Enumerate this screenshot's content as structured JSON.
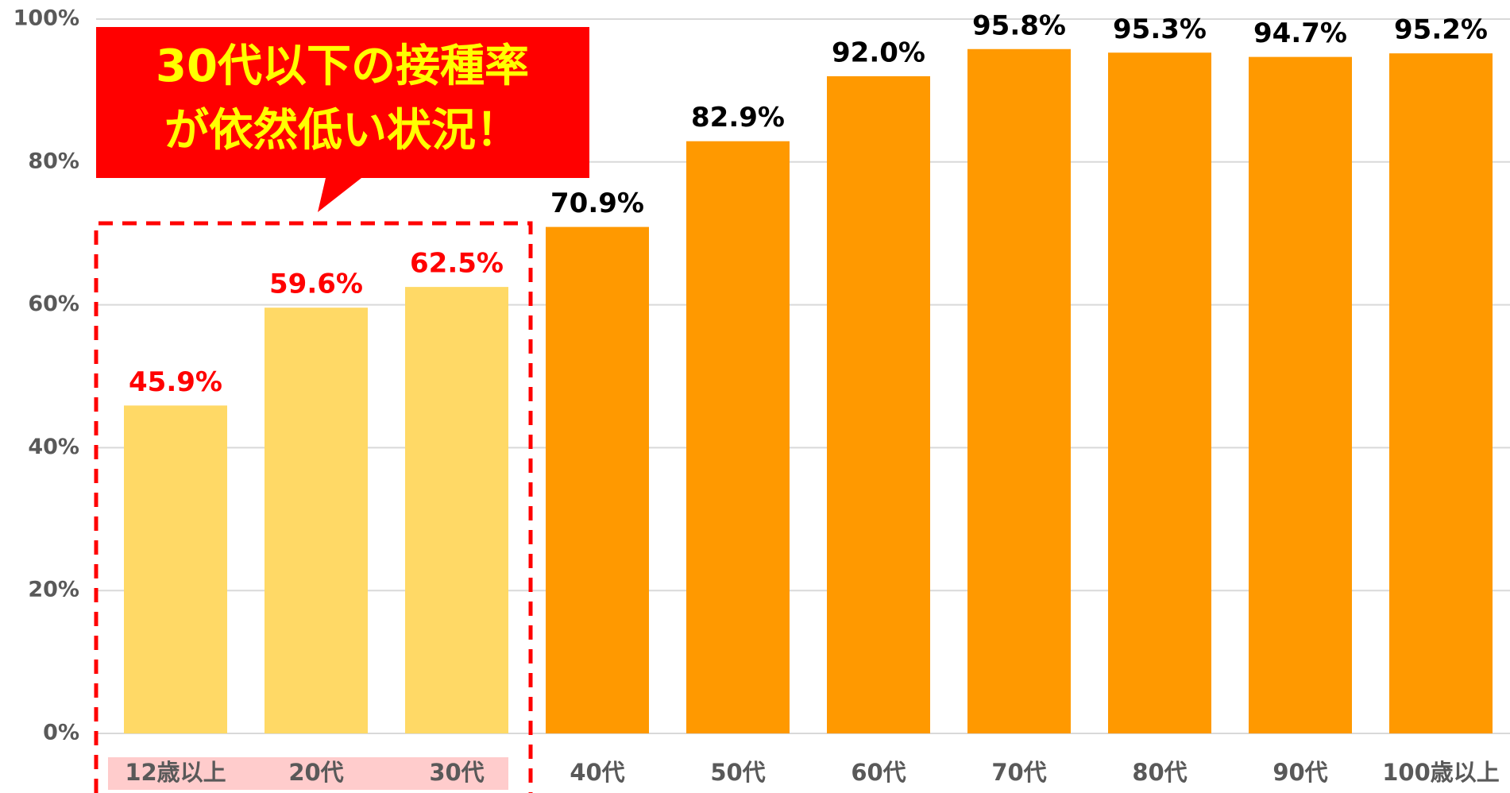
{
  "chart_data": {
    "type": "bar",
    "annotation": [
      "30代以下の接種率",
      "が依然低い状況！"
    ],
    "categories": [
      "12歳以上",
      "20代",
      "30代",
      "40代",
      "50代",
      "60代",
      "70代",
      "80代",
      "90代",
      "100歳以上"
    ],
    "values": [
      45.9,
      59.6,
      62.5,
      70.9,
      82.9,
      92.0,
      95.8,
      95.3,
      94.7,
      95.2
    ],
    "value_labels": [
      "45.9%",
      "59.6%",
      "62.5%",
      "70.9%",
      "82.9%",
      "92.0%",
      "95.8%",
      "95.3%",
      "94.7%",
      "95.2%"
    ],
    "colors": [
      "#FFD966",
      "#FFD966",
      "#FFD966",
      "#FF9900",
      "#FF9900",
      "#FF9900",
      "#FF9900",
      "#FF9900",
      "#FF9900",
      "#FF9900"
    ],
    "label_colors": [
      "#FF0000",
      "#FF0000",
      "#FF0000",
      "#000000",
      "#000000",
      "#000000",
      "#000000",
      "#000000",
      "#000000",
      "#000000"
    ],
    "ylim": [
      0,
      100
    ],
    "yticks": [
      {
        "value": 0,
        "label": "0%"
      },
      {
        "value": 20,
        "label": "20%"
      },
      {
        "value": 40,
        "label": "40%"
      },
      {
        "value": 60,
        "label": "60%"
      },
      {
        "value": 80,
        "label": "80%"
      },
      {
        "value": 100,
        "label": "100%"
      }
    ],
    "grid": true
  }
}
